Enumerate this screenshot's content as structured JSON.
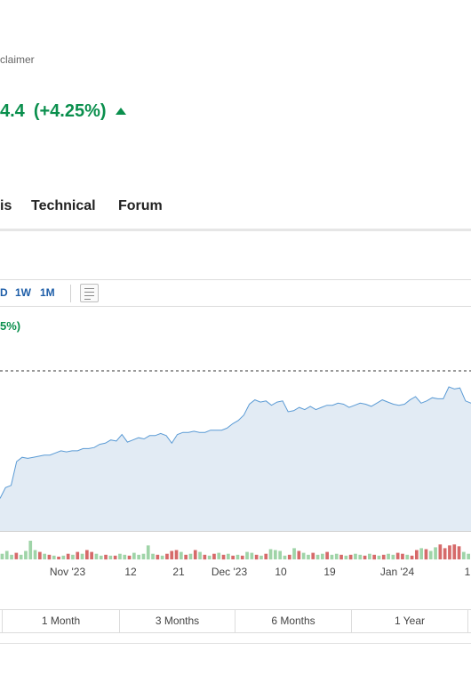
{
  "header": {
    "disclaimer": "claimer"
  },
  "price": {
    "value": "4.4",
    "change": "(+4.25%)",
    "direction": "up",
    "color": "#0a8f4d"
  },
  "tabs": [
    {
      "label": "is"
    },
    {
      "label": "Technical"
    },
    {
      "label": "Forum"
    }
  ],
  "toolbar": {
    "ranges": [
      "D",
      "1W",
      "1M"
    ],
    "chart_type_icon": "chart-type-icon"
  },
  "chart_change_label": "5%)",
  "periods": [
    "1 Month",
    "3 Months",
    "6 Months",
    "1 Year"
  ],
  "colors": {
    "line": "#5b9bd5",
    "area": "#e2ebf4",
    "volume_up": "#9fd4a8",
    "volume_down": "#d66a6a",
    "accent": "#1e5ea8"
  },
  "chart_data": {
    "type": "area",
    "title": "",
    "xlabel": "",
    "ylabel": "",
    "x_tick_labels": [
      "Nov '23",
      "12",
      "21",
      "Dec '23",
      "10",
      "19",
      "Jan '24",
      "1"
    ],
    "grid": false,
    "reference_line": "previous close (dashed)",
    "price": [
      30,
      40,
      42,
      64,
      68,
      67,
      68,
      69,
      70,
      70,
      72,
      74,
      73,
      74,
      74,
      76,
      76,
      77,
      80,
      81,
      84,
      83,
      89,
      82,
      84,
      86,
      85,
      88,
      88,
      90,
      88,
      81,
      89,
      91,
      91,
      92,
      91,
      91,
      93,
      93,
      93,
      95,
      99,
      102,
      107,
      117,
      121,
      119,
      120,
      116,
      119,
      120,
      110,
      111,
      114,
      112,
      115,
      112,
      114,
      116,
      116,
      118,
      117,
      114,
      116,
      118,
      117,
      115,
      118,
      121,
      119,
      117,
      116,
      117,
      121,
      124,
      118,
      120,
      123,
      122,
      122,
      133,
      131,
      132,
      120,
      118
    ],
    "volume": [
      {
        "v": 6,
        "up": true
      },
      {
        "v": 9,
        "up": true
      },
      {
        "v": 5,
        "up": true
      },
      {
        "v": 7,
        "up": false
      },
      {
        "v": 5,
        "up": true
      },
      {
        "v": 9,
        "up": true
      },
      {
        "v": 20,
        "up": true
      },
      {
        "v": 10,
        "up": true
      },
      {
        "v": 8,
        "up": false
      },
      {
        "v": 6,
        "up": true
      },
      {
        "v": 5,
        "up": false
      },
      {
        "v": 4,
        "up": true
      },
      {
        "v": 3,
        "up": false
      },
      {
        "v": 4,
        "up": true
      },
      {
        "v": 6,
        "up": false
      },
      {
        "v": 5,
        "up": true
      },
      {
        "v": 8,
        "up": false
      },
      {
        "v": 6,
        "up": true
      },
      {
        "v": 10,
        "up": false
      },
      {
        "v": 8,
        "up": false
      },
      {
        "v": 6,
        "up": true
      },
      {
        "v": 4,
        "up": true
      },
      {
        "v": 5,
        "up": false
      },
      {
        "v": 4,
        "up": true
      },
      {
        "v": 4,
        "up": false
      },
      {
        "v": 6,
        "up": true
      },
      {
        "v": 5,
        "up": true
      },
      {
        "v": 4,
        "up": false
      },
      {
        "v": 7,
        "up": true
      },
      {
        "v": 5,
        "up": true
      },
      {
        "v": 6,
        "up": true
      },
      {
        "v": 15,
        "up": true
      },
      {
        "v": 6,
        "up": true
      },
      {
        "v": 5,
        "up": false
      },
      {
        "v": 4,
        "up": true
      },
      {
        "v": 6,
        "up": false
      },
      {
        "v": 9,
        "up": false
      },
      {
        "v": 10,
        "up": false
      },
      {
        "v": 8,
        "up": true
      },
      {
        "v": 5,
        "up": false
      },
      {
        "v": 6,
        "up": true
      },
      {
        "v": 10,
        "up": false
      },
      {
        "v": 8,
        "up": true
      },
      {
        "v": 5,
        "up": false
      },
      {
        "v": 4,
        "up": true
      },
      {
        "v": 6,
        "up": false
      },
      {
        "v": 7,
        "up": true
      },
      {
        "v": 5,
        "up": false
      },
      {
        "v": 6,
        "up": true
      },
      {
        "v": 4,
        "up": false
      },
      {
        "v": 5,
        "up": true
      },
      {
        "v": 4,
        "up": false
      },
      {
        "v": 8,
        "up": true
      },
      {
        "v": 7,
        "up": true
      },
      {
        "v": 5,
        "up": false
      },
      {
        "v": 4,
        "up": true
      },
      {
        "v": 6,
        "up": false
      },
      {
        "v": 11,
        "up": true
      },
      {
        "v": 10,
        "up": true
      },
      {
        "v": 9,
        "up": true
      },
      {
        "v": 4,
        "up": true
      },
      {
        "v": 5,
        "up": false
      },
      {
        "v": 12,
        "up": true
      },
      {
        "v": 9,
        "up": false
      },
      {
        "v": 7,
        "up": true
      },
      {
        "v": 5,
        "up": true
      },
      {
        "v": 7,
        "up": false
      },
      {
        "v": 5,
        "up": true
      },
      {
        "v": 6,
        "up": true
      },
      {
        "v": 8,
        "up": false
      },
      {
        "v": 5,
        "up": true
      },
      {
        "v": 6,
        "up": true
      },
      {
        "v": 5,
        "up": false
      },
      {
        "v": 4,
        "up": true
      },
      {
        "v": 5,
        "up": false
      },
      {
        "v": 6,
        "up": true
      },
      {
        "v": 5,
        "up": true
      },
      {
        "v": 4,
        "up": false
      },
      {
        "v": 6,
        "up": true
      },
      {
        "v": 5,
        "up": false
      },
      {
        "v": 4,
        "up": true
      },
      {
        "v": 5,
        "up": false
      },
      {
        "v": 6,
        "up": true
      },
      {
        "v": 5,
        "up": true
      },
      {
        "v": 7,
        "up": false
      },
      {
        "v": 6,
        "up": false
      },
      {
        "v": 5,
        "up": true
      },
      {
        "v": 4,
        "up": false
      },
      {
        "v": 10,
        "up": false
      },
      {
        "v": 12,
        "up": true
      },
      {
        "v": 11,
        "up": false
      },
      {
        "v": 9,
        "up": true
      },
      {
        "v": 13,
        "up": true
      },
      {
        "v": 16,
        "up": false
      },
      {
        "v": 12,
        "up": false
      },
      {
        "v": 15,
        "up": false
      },
      {
        "v": 16,
        "up": false
      },
      {
        "v": 14,
        "up": false
      },
      {
        "v": 8,
        "up": true
      },
      {
        "v": 6,
        "up": true
      }
    ]
  }
}
